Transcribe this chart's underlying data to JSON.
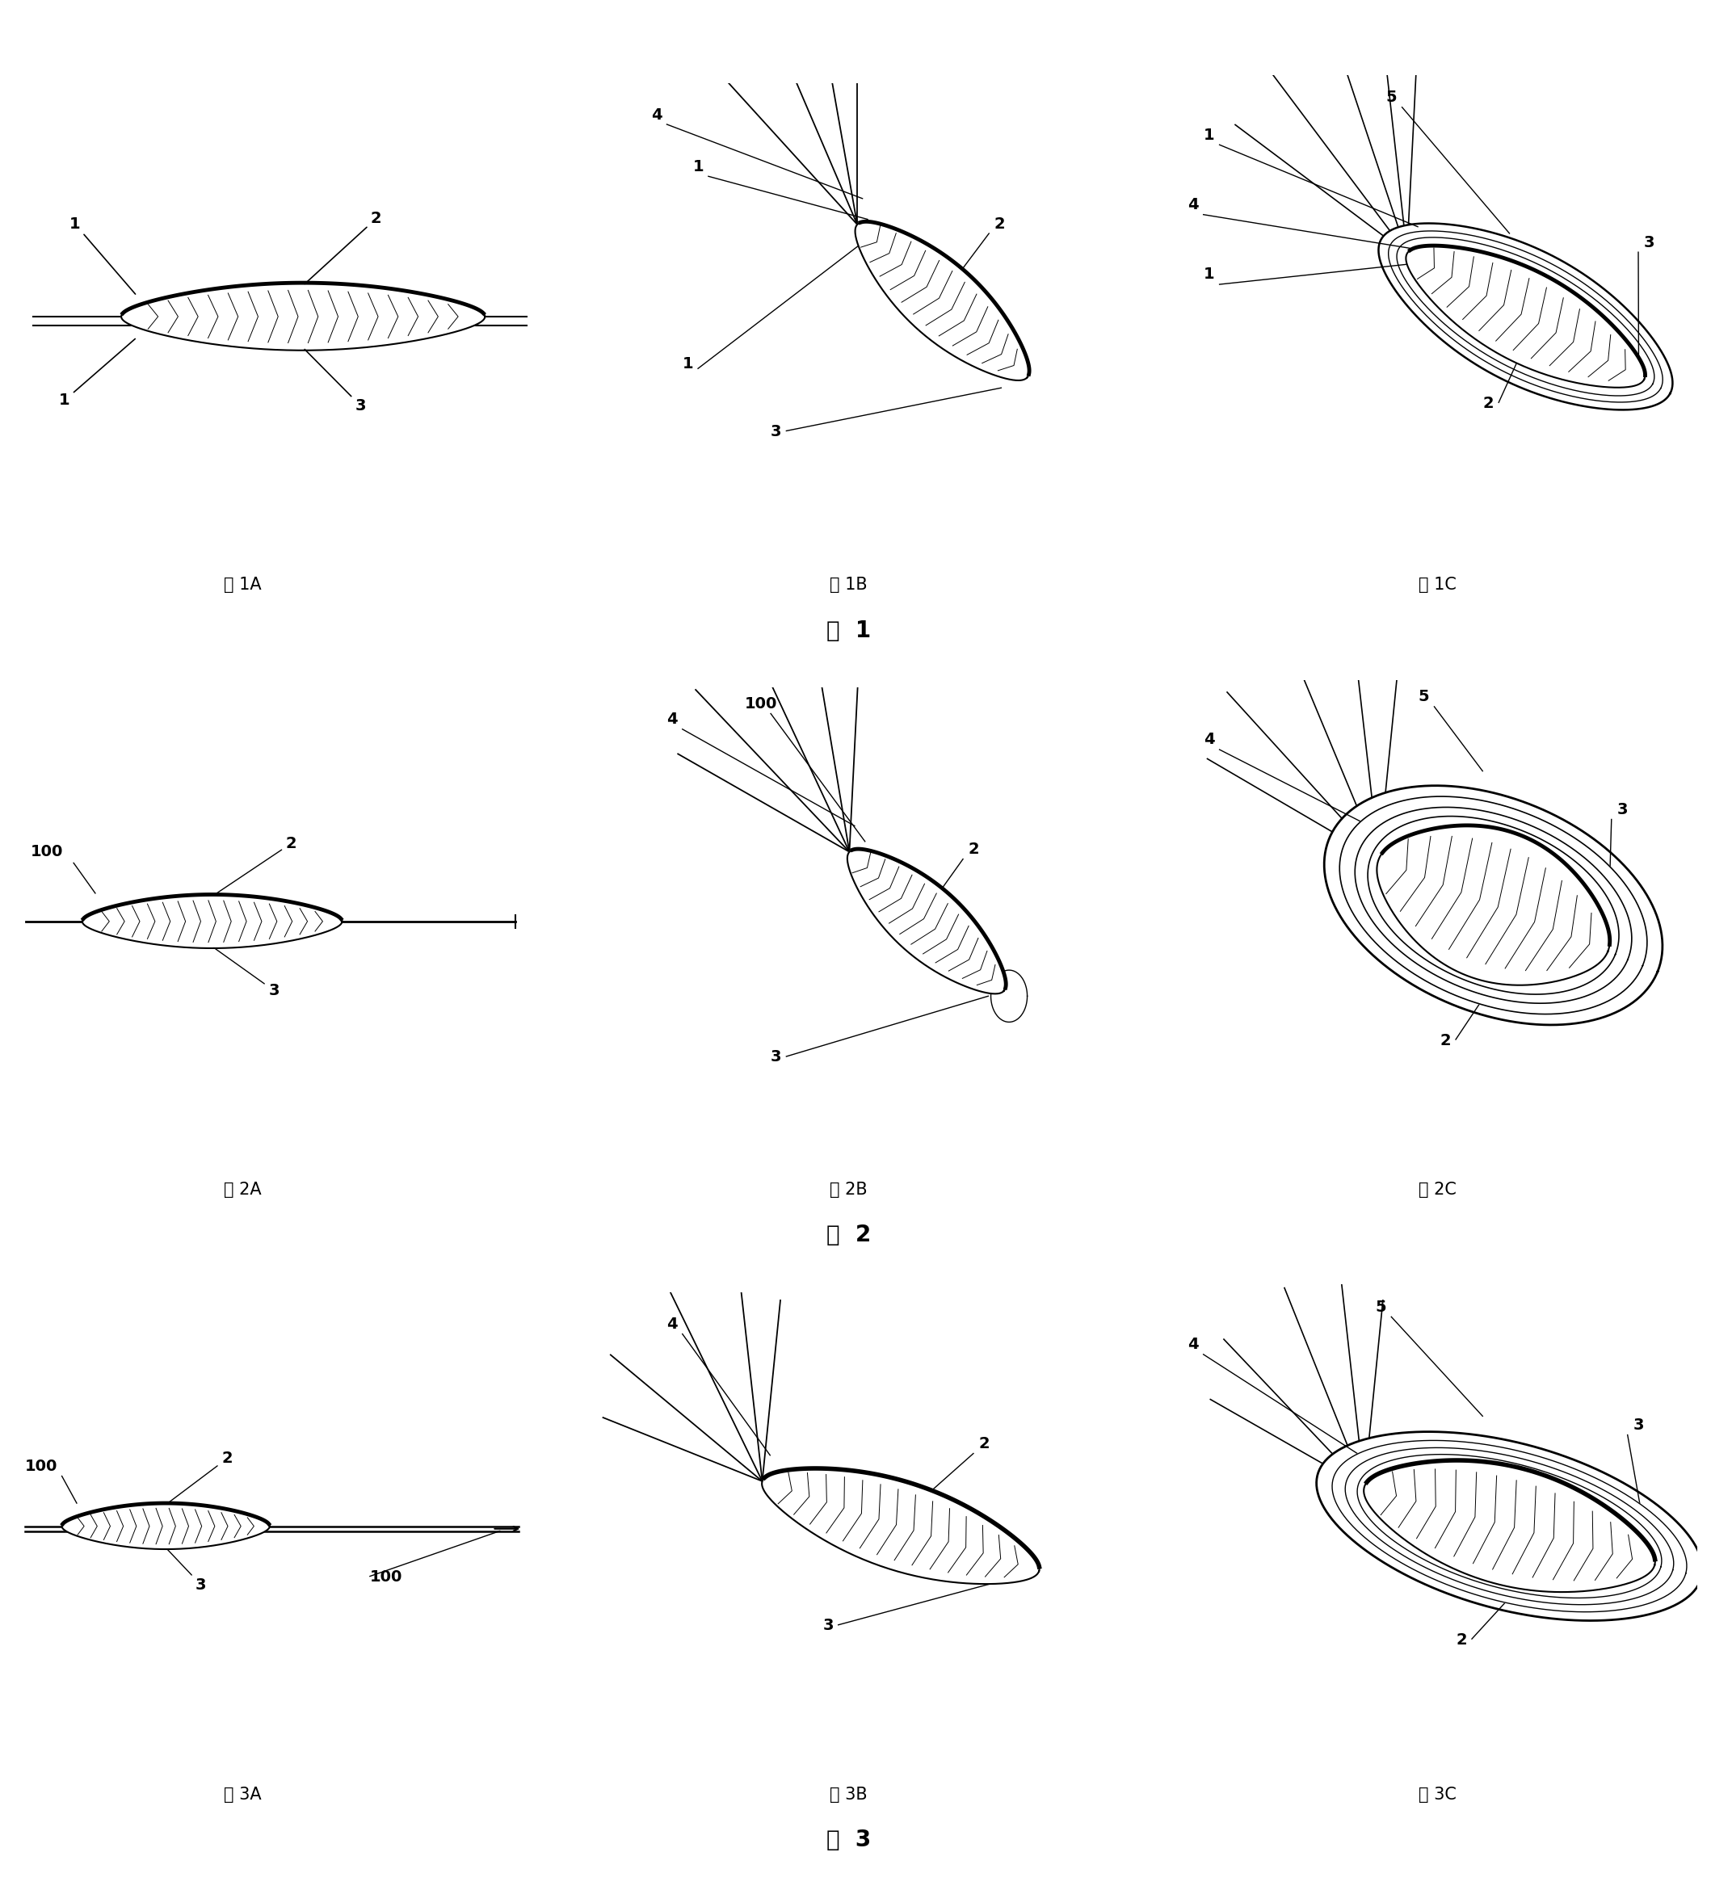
{
  "fig_labels": {
    "1A": "图 1A",
    "1B": "图 1B",
    "1C": "图 1C",
    "fig1": "图  1",
    "2A": "图 2A",
    "2B": "图 2B",
    "2C": "图 2C",
    "fig2": "图  2",
    "3A": "图 3A",
    "3B": "图 3B",
    "3C": "图 3C",
    "fig3": "图  3"
  },
  "background": "#ffffff",
  "line_color": "#000000",
  "label_fontsize": 14,
  "sublabel_fontsize": 15,
  "fig_label_fontsize": 20
}
